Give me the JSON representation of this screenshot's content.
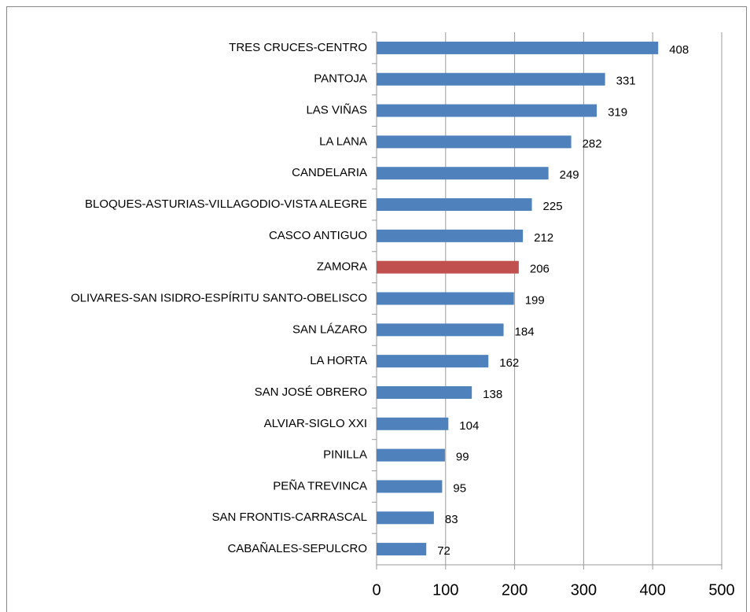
{
  "chart_data": {
    "type": "barh",
    "categories": [
      "TRES CRUCES-CENTRO",
      "PANTOJA",
      "LAS VIÑAS",
      "LA LANA",
      "CANDELARIA",
      "BLOQUES-ASTURIAS-VILLAGODIO-VISTA ALEGRE",
      "CASCO ANTIGUO",
      "ZAMORA",
      "OLIVARES-SAN ISIDRO-ESPÍRITU SANTO-OBELISCO",
      "SAN LÁZARO",
      "LA HORTA",
      "SAN JOSÉ OBRERO",
      "ALVIAR-SIGLO XXI",
      "PINILLA",
      "PEÑA TREVINCA",
      "SAN FRONTIS-CARRASCAL",
      "CABAÑALES-SEPULCRO"
    ],
    "values": [
      408,
      331,
      319,
      282,
      249,
      225,
      212,
      206,
      199,
      184,
      162,
      138,
      104,
      99,
      95,
      83,
      72
    ],
    "colors": [
      "#4f81bd",
      "#4f81bd",
      "#4f81bd",
      "#4f81bd",
      "#4f81bd",
      "#4f81bd",
      "#4f81bd",
      "#c0504d",
      "#4f81bd",
      "#4f81bd",
      "#4f81bd",
      "#4f81bd",
      "#4f81bd",
      "#4f81bd",
      "#4f81bd",
      "#4f81bd",
      "#4f81bd"
    ],
    "xlim": [
      0,
      500
    ],
    "xticks": [
      0,
      100,
      200,
      300,
      400,
      500
    ],
    "grid": true
  }
}
